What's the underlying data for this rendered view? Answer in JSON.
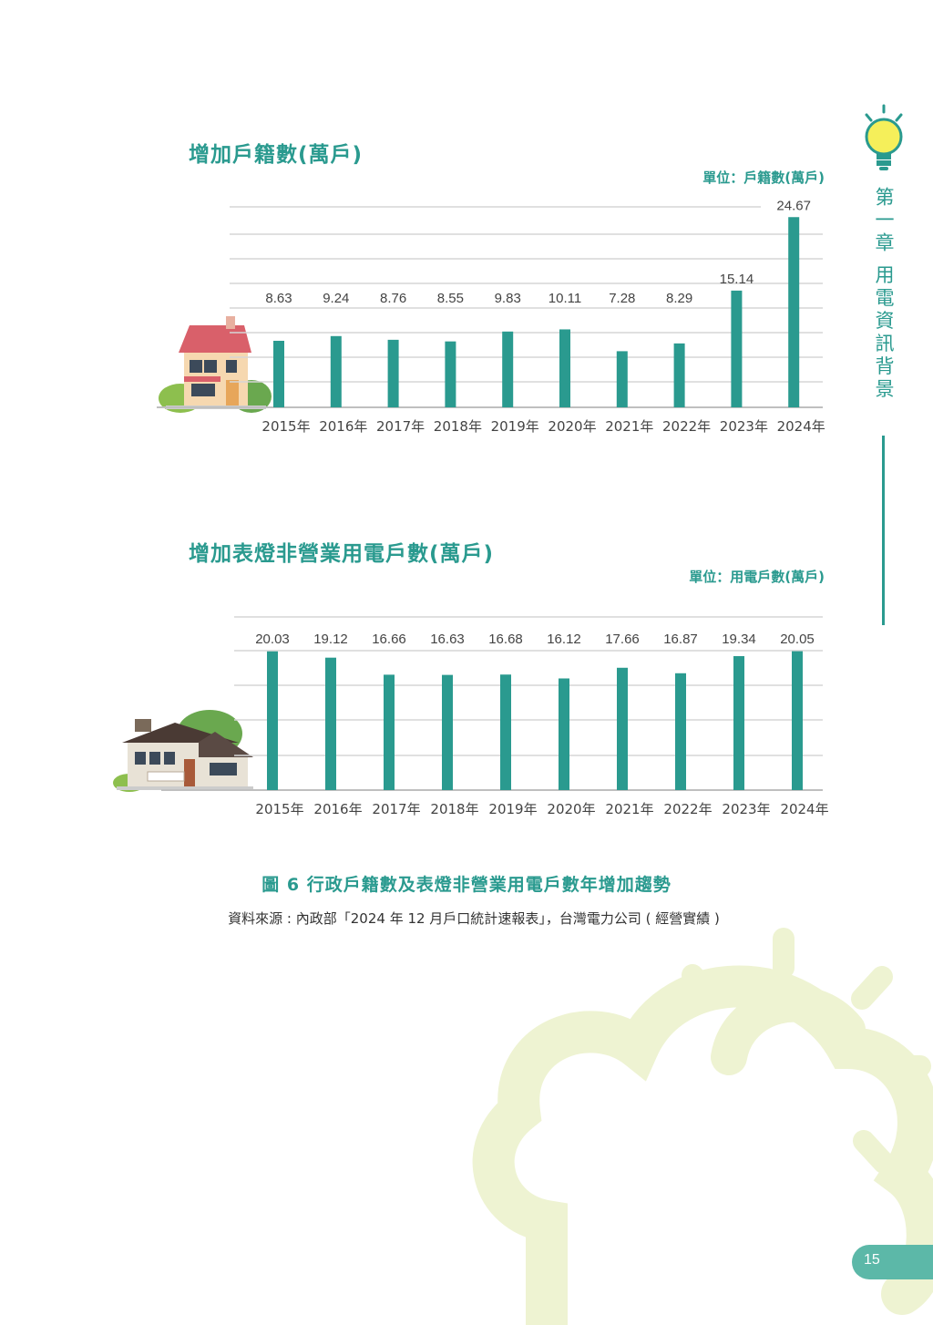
{
  "sidebar": {
    "chapter_label": "第一章 用電資訊背景"
  },
  "page_number": "15",
  "figure": {
    "caption": "圖 6 行政戶籍數及表燈非營業用電戶數年增加趨勢",
    "source": "資料來源 : 內政部「2024 年 12 月戶口統計速報表」，台灣電力公司 ( 經營實績 )"
  },
  "colors": {
    "accent": "#2a9a8f",
    "bar": "#2a9a8f",
    "grid": "#d6d6d6",
    "decor": "#eef3d2",
    "bulb": "#f5ef5a",
    "page_tab": "#5cb8a8"
  },
  "chart_data": [
    {
      "type": "bar",
      "title": "增加戶籍數(萬戶)",
      "unit": "單位：戶籍數(萬戶)",
      "categories": [
        "2015年",
        "2016年",
        "2017年",
        "2018年",
        "2019年",
        "2020年",
        "2021年",
        "2022年",
        "2023年",
        "2024年"
      ],
      "values": [
        8.63,
        9.24,
        8.76,
        8.55,
        9.83,
        10.11,
        7.28,
        8.29,
        15.14,
        24.67
      ],
      "data_labels": [
        "8.63",
        "9.24",
        "8.76",
        "8.55",
        "9.83",
        "10.11",
        "7.28",
        "8.29",
        "15.14",
        "24.67"
      ],
      "ylim": [
        0,
        26
      ],
      "grid": true,
      "xlabel": "",
      "ylabel": ""
    },
    {
      "type": "bar",
      "title": "增加表燈非營業用電戶數(萬戶)",
      "unit": "單位：用電戶數(萬戶)",
      "categories": [
        "2015年",
        "2016年",
        "2017年",
        "2018年",
        "2019年",
        "2020年",
        "2021年",
        "2022年",
        "2023年",
        "2024年"
      ],
      "values": [
        20.03,
        19.12,
        16.66,
        16.63,
        16.68,
        16.12,
        17.66,
        16.87,
        19.34,
        20.05
      ],
      "data_labels": [
        "20.03",
        "19.12",
        "16.66",
        "16.63",
        "16.68",
        "16.12",
        "17.66",
        "16.87",
        "19.34",
        "20.05"
      ],
      "ylim": [
        0,
        25
      ],
      "grid": true,
      "xlabel": "",
      "ylabel": ""
    }
  ]
}
